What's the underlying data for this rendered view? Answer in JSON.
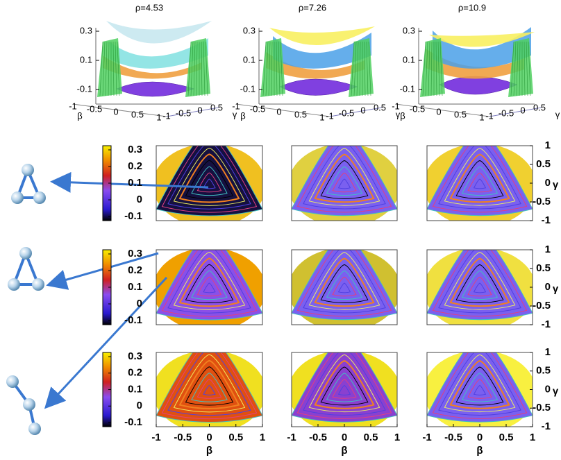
{
  "columns": [
    {
      "title": "ρ=4.53"
    },
    {
      "title": "ρ=7.26"
    },
    {
      "title": "ρ=10.9"
    }
  ],
  "surface_axes": {
    "z_ticks": [
      0.3,
      0.1,
      -0.1
    ],
    "beta_ticks": [
      -1,
      -0.5,
      0,
      0.5,
      1
    ],
    "gamma_ticks": [
      -1,
      -0.5,
      0,
      0.5
    ],
    "beta_label": "β",
    "gamma_label": "γ"
  },
  "colorbar_ticks": [
    0.3,
    0.2,
    0.1,
    0,
    -0.1
  ],
  "map_axes": {
    "x_ticks": [
      -1,
      -0.5,
      0,
      0.5,
      1
    ],
    "y_ticks": [
      1,
      0.5,
      0,
      -0.5,
      -1
    ],
    "x_label": "β",
    "y_label": "γ"
  }
}
